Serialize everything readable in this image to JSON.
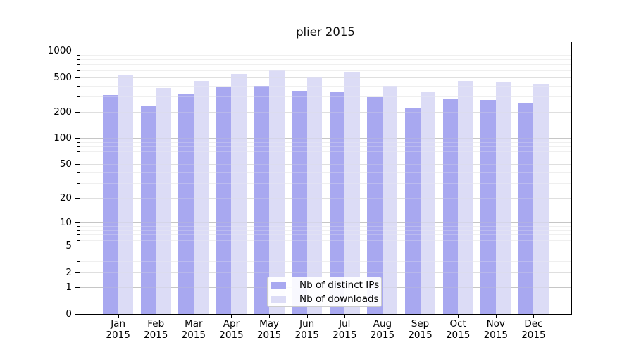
{
  "title": "plier 2015",
  "chart_data": {
    "type": "bar",
    "title": "plier 2015",
    "categories": [
      "Jan",
      "Feb",
      "Mar",
      "Apr",
      "May",
      "Jun",
      "Jul",
      "Aug",
      "Sep",
      "Oct",
      "Nov",
      "Dec"
    ],
    "x_year_label": "2015",
    "series": [
      {
        "name": "Nb of distinct IPs",
        "color": "#a8a8f0",
        "values": [
          312,
          233,
          326,
          388,
          395,
          347,
          336,
          295,
          222,
          284,
          272,
          256
        ]
      },
      {
        "name": "Nb of downloads",
        "color": "#dcdcf6",
        "values": [
          535,
          374,
          450,
          545,
          600,
          505,
          575,
          398,
          342,
          453,
          442,
          415
        ]
      }
    ],
    "yscale": "log1p",
    "ylim": [
      0,
      1250
    ],
    "y_ticks": [
      0,
      1,
      2,
      5,
      10,
      20,
      50,
      100,
      200,
      500,
      1000
    ],
    "y_minor_ticks": [
      3,
      4,
      6,
      7,
      8,
      9,
      30,
      40,
      60,
      70,
      80,
      90,
      300,
      400,
      600,
      700,
      800,
      900
    ],
    "grid": true,
    "legend_position": "lower-center"
  },
  "colors": {
    "grid_major": "#c6c6c6",
    "grid_mid": "#dfdfdf",
    "grid_minor": "#efefef",
    "axis": "#000000",
    "legend_border": "#cccccc"
  }
}
